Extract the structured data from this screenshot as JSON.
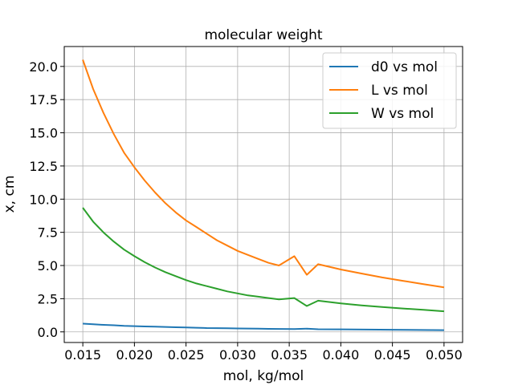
{
  "chart_data": {
    "type": "line",
    "title": "molecular weight",
    "xlabel": "mol, kg/mol",
    "ylabel": "x, cm",
    "xlim": [
      0.0132,
      0.0518
    ],
    "ylim": [
      -0.8,
      21.5
    ],
    "xticks": [
      0.015,
      0.02,
      0.025,
      0.03,
      0.035,
      0.04,
      0.045,
      0.05
    ],
    "xtick_labels": [
      "0.015",
      "0.020",
      "0.025",
      "0.030",
      "0.035",
      "0.040",
      "0.045",
      "0.050"
    ],
    "yticks": [
      0.0,
      2.5,
      5.0,
      7.5,
      10.0,
      12.5,
      15.0,
      17.5,
      20.0
    ],
    "ytick_labels": [
      "0.0",
      "2.5",
      "5.0",
      "7.5",
      "10.0",
      "12.5",
      "15.0",
      "17.5",
      "20.0"
    ],
    "grid": true,
    "legend_position": "top-right",
    "series": [
      {
        "name": "d0 vs mol",
        "color": "#1f77b4",
        "x": [
          0.015,
          0.016,
          0.017,
          0.018,
          0.019,
          0.02,
          0.021,
          0.022,
          0.023,
          0.024,
          0.025,
          0.026,
          0.027,
          0.028,
          0.029,
          0.03,
          0.031,
          0.032,
          0.033,
          0.034,
          0.0355,
          0.0367,
          0.0378,
          0.04,
          0.045,
          0.05
        ],
        "y": [
          0.62,
          0.57,
          0.53,
          0.5,
          0.46,
          0.43,
          0.41,
          0.39,
          0.37,
          0.35,
          0.33,
          0.31,
          0.29,
          0.28,
          0.27,
          0.26,
          0.25,
          0.24,
          0.23,
          0.22,
          0.21,
          0.24,
          0.2,
          0.19,
          0.16,
          0.13
        ]
      },
      {
        "name": "L vs mol",
        "color": "#ff7f0e",
        "x": [
          0.015,
          0.016,
          0.017,
          0.018,
          0.019,
          0.02,
          0.021,
          0.022,
          0.023,
          0.024,
          0.025,
          0.026,
          0.027,
          0.028,
          0.029,
          0.03,
          0.031,
          0.032,
          0.033,
          0.034,
          0.0355,
          0.0367,
          0.0378,
          0.04,
          0.042,
          0.044,
          0.046,
          0.048,
          0.05
        ],
        "y": [
          20.5,
          18.3,
          16.5,
          14.9,
          13.5,
          12.4,
          11.4,
          10.5,
          9.7,
          9.0,
          8.4,
          7.9,
          7.4,
          6.9,
          6.5,
          6.1,
          5.8,
          5.5,
          5.2,
          5.0,
          5.7,
          4.3,
          5.1,
          4.7,
          4.4,
          4.1,
          3.85,
          3.6,
          3.35
        ]
      },
      {
        "name": "W vs mol",
        "color": "#2ca02c",
        "x": [
          0.015,
          0.016,
          0.017,
          0.018,
          0.019,
          0.02,
          0.021,
          0.022,
          0.023,
          0.024,
          0.025,
          0.026,
          0.027,
          0.028,
          0.029,
          0.03,
          0.031,
          0.032,
          0.033,
          0.034,
          0.0355,
          0.0367,
          0.0378,
          0.04,
          0.042,
          0.044,
          0.046,
          0.048,
          0.05
        ],
        "y": [
          9.35,
          8.3,
          7.5,
          6.8,
          6.2,
          5.7,
          5.25,
          4.85,
          4.5,
          4.2,
          3.9,
          3.65,
          3.45,
          3.25,
          3.05,
          2.9,
          2.75,
          2.65,
          2.55,
          2.45,
          2.55,
          1.95,
          2.35,
          2.15,
          2.0,
          1.87,
          1.76,
          1.66,
          1.55
        ]
      }
    ]
  }
}
